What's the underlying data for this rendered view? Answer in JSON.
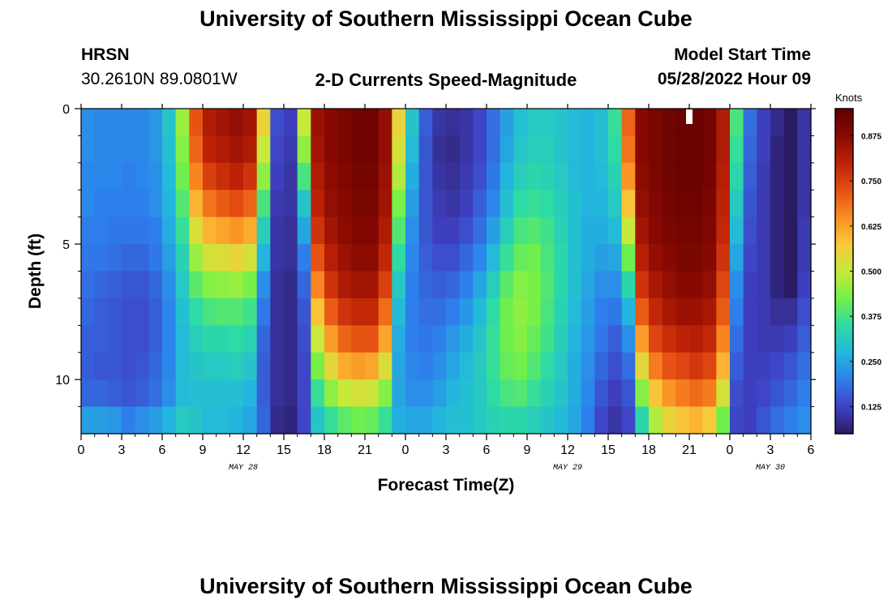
{
  "header": {
    "title": "University of Southern Mississippi Ocean Cube",
    "station_id": "HRSN",
    "station_coords": "30.2610N  89.0801W",
    "plot_title": "2-D Currents Speed-Magnitude",
    "model_start_label": "Model Start Time",
    "model_start_value": "05/28/2022 Hour 09"
  },
  "footer": {
    "title": "University of Southern Mississippi Ocean Cube"
  },
  "chart_data": {
    "type": "heatmap",
    "title": "2-D Currents Speed-Magnitude",
    "xlabel": "Forecast Time(Z)",
    "ylabel": "Depth (ft)",
    "x_unit": "hours since 2022-05-28 00Z",
    "xlim": [
      0,
      54
    ],
    "ylim": [
      0,
      12
    ],
    "y_inverted": true,
    "x_ticks": [
      {
        "h": 0,
        "label": "0"
      },
      {
        "h": 3,
        "label": "3"
      },
      {
        "h": 6,
        "label": "6"
      },
      {
        "h": 9,
        "label": "9"
      },
      {
        "h": 12,
        "label": "12"
      },
      {
        "h": 15,
        "label": "15"
      },
      {
        "h": 18,
        "label": "18"
      },
      {
        "h": 21,
        "label": "21"
      },
      {
        "h": 24,
        "label": "0"
      },
      {
        "h": 27,
        "label": "3"
      },
      {
        "h": 30,
        "label": "6"
      },
      {
        "h": 33,
        "label": "9"
      },
      {
        "h": 36,
        "label": "12"
      },
      {
        "h": 39,
        "label": "15"
      },
      {
        "h": 42,
        "label": "18"
      },
      {
        "h": 45,
        "label": "21"
      },
      {
        "h": 48,
        "label": "0"
      },
      {
        "h": 51,
        "label": "3"
      },
      {
        "h": 54,
        "label": "6"
      }
    ],
    "date_labels": [
      {
        "h": 12,
        "label": "MAY 28"
      },
      {
        "h": 36,
        "label": "MAY 29"
      },
      {
        "h": 51,
        "label": "MAY 30"
      }
    ],
    "y_ticks": [
      {
        "depth": 0,
        "label": "0"
      },
      {
        "depth": 5,
        "label": "5"
      },
      {
        "depth": 10,
        "label": "10"
      }
    ],
    "time_markers": [
      {
        "h": 45,
        "note": "white marker at top of plot"
      }
    ],
    "colorbar": {
      "label": "Knots",
      "range": [
        0.05,
        0.95
      ],
      "ticks": [
        {
          "value": 0.125,
          "label": "0.125"
        },
        {
          "value": 0.25,
          "label": "0.250"
        },
        {
          "value": 0.375,
          "label": "0.375"
        },
        {
          "value": 0.5,
          "label": "0.500"
        },
        {
          "value": 0.625,
          "label": "0.625"
        },
        {
          "value": 0.75,
          "label": "0.750"
        },
        {
          "value": 0.875,
          "label": "0.875"
        }
      ],
      "colors": [
        "#2b1b63",
        "#3f42c4",
        "#2e7fec",
        "#22b9dc",
        "#2ddba4",
        "#74f048",
        "#c6e93a",
        "#f9c83a",
        "#fb8d22",
        "#e54f12",
        "#bd2207",
        "#8a0a02",
        "#5e0000"
      ]
    },
    "grid_bins": {
      "time_step_hours": 1,
      "depth_step_ft": 1,
      "depths_ft": [
        0.5,
        1.5,
        2.5,
        3.5,
        4.5,
        5.5,
        6.5,
        7.5,
        8.5,
        9.5,
        10.5,
        11.5
      ]
    },
    "speed_profiles_knots": [
      {
        "h0": 0,
        "h1": 1,
        "values": [
          0.22,
          0.22,
          0.21,
          0.21,
          0.2,
          0.19,
          0.18,
          0.17,
          0.16,
          0.16,
          0.17,
          0.24
        ]
      },
      {
        "h0": 1,
        "h1": 2,
        "values": [
          0.21,
          0.21,
          0.21,
          0.2,
          0.2,
          0.19,
          0.17,
          0.16,
          0.16,
          0.15,
          0.17,
          0.24
        ]
      },
      {
        "h0": 2,
        "h1": 3,
        "values": [
          0.21,
          0.21,
          0.21,
          0.2,
          0.19,
          0.18,
          0.16,
          0.15,
          0.15,
          0.15,
          0.16,
          0.23
        ]
      },
      {
        "h0": 3,
        "h1": 4,
        "values": [
          0.21,
          0.21,
          0.2,
          0.2,
          0.19,
          0.17,
          0.15,
          0.14,
          0.14,
          0.14,
          0.15,
          0.2
        ]
      },
      {
        "h0": 4,
        "h1": 5,
        "values": [
          0.21,
          0.21,
          0.21,
          0.2,
          0.19,
          0.17,
          0.15,
          0.14,
          0.14,
          0.15,
          0.16,
          0.22
        ]
      },
      {
        "h0": 5,
        "h1": 6,
        "values": [
          0.23,
          0.23,
          0.22,
          0.22,
          0.2,
          0.19,
          0.17,
          0.16,
          0.16,
          0.17,
          0.18,
          0.24
        ]
      },
      {
        "h0": 6,
        "h1": 7,
        "values": [
          0.3,
          0.29,
          0.28,
          0.27,
          0.26,
          0.24,
          0.22,
          0.21,
          0.21,
          0.21,
          0.22,
          0.27
        ]
      },
      {
        "h0": 7,
        "h1": 8,
        "values": [
          0.46,
          0.44,
          0.42,
          0.39,
          0.36,
          0.33,
          0.31,
          0.29,
          0.28,
          0.28,
          0.28,
          0.31
        ]
      },
      {
        "h0": 8,
        "h1": 9,
        "values": [
          0.72,
          0.7,
          0.66,
          0.6,
          0.53,
          0.46,
          0.4,
          0.35,
          0.32,
          0.3,
          0.29,
          0.3
        ]
      },
      {
        "h0": 9,
        "h1": 10,
        "values": [
          0.82,
          0.8,
          0.75,
          0.68,
          0.6,
          0.52,
          0.44,
          0.38,
          0.34,
          0.31,
          0.29,
          0.28
        ]
      },
      {
        "h0": 10,
        "h1": 11,
        "values": [
          0.84,
          0.82,
          0.78,
          0.71,
          0.62,
          0.53,
          0.45,
          0.39,
          0.34,
          0.31,
          0.29,
          0.28
        ]
      },
      {
        "h0": 11,
        "h1": 12,
        "values": [
          0.86,
          0.84,
          0.8,
          0.73,
          0.64,
          0.55,
          0.46,
          0.39,
          0.35,
          0.32,
          0.29,
          0.27
        ]
      },
      {
        "h0": 12,
        "h1": 13,
        "values": [
          0.84,
          0.82,
          0.77,
          0.7,
          0.61,
          0.52,
          0.43,
          0.37,
          0.33,
          0.3,
          0.27,
          0.25
        ]
      },
      {
        "h0": 13,
        "h1": 14,
        "values": [
          0.55,
          0.5,
          0.45,
          0.38,
          0.32,
          0.27,
          0.22,
          0.19,
          0.17,
          0.16,
          0.16,
          0.17
        ]
      },
      {
        "h0": 14,
        "h1": 15,
        "values": [
          0.14,
          0.13,
          0.12,
          0.11,
          0.1,
          0.1,
          0.09,
          0.09,
          0.09,
          0.09,
          0.09,
          0.08
        ]
      },
      {
        "h0": 15,
        "h1": 16,
        "values": [
          0.12,
          0.11,
          0.1,
          0.1,
          0.09,
          0.09,
          0.08,
          0.08,
          0.08,
          0.08,
          0.08,
          0.07
        ]
      },
      {
        "h0": 16,
        "h1": 17,
        "values": [
          0.5,
          0.45,
          0.38,
          0.3,
          0.25,
          0.2,
          0.17,
          0.15,
          0.14,
          0.13,
          0.13,
          0.13
        ]
      },
      {
        "h0": 17,
        "h1": 18,
        "values": [
          0.85,
          0.84,
          0.82,
          0.8,
          0.77,
          0.72,
          0.66,
          0.58,
          0.5,
          0.43,
          0.36,
          0.3
        ]
      },
      {
        "h0": 18,
        "h1": 19,
        "values": [
          0.88,
          0.88,
          0.87,
          0.86,
          0.84,
          0.81,
          0.77,
          0.71,
          0.63,
          0.54,
          0.45,
          0.36
        ]
      },
      {
        "h0": 19,
        "h1": 20,
        "values": [
          0.9,
          0.9,
          0.89,
          0.88,
          0.87,
          0.85,
          0.82,
          0.77,
          0.7,
          0.61,
          0.5,
          0.4
        ]
      },
      {
        "h0": 20,
        "h1": 21,
        "values": [
          0.92,
          0.92,
          0.91,
          0.9,
          0.89,
          0.87,
          0.84,
          0.79,
          0.72,
          0.63,
          0.52,
          0.42
        ]
      },
      {
        "h0": 21,
        "h1": 22,
        "values": [
          0.92,
          0.92,
          0.91,
          0.9,
          0.89,
          0.87,
          0.84,
          0.79,
          0.72,
          0.62,
          0.51,
          0.41
        ]
      },
      {
        "h0": 22,
        "h1": 23,
        "values": [
          0.86,
          0.86,
          0.85,
          0.84,
          0.82,
          0.79,
          0.75,
          0.69,
          0.62,
          0.53,
          0.44,
          0.36
        ]
      },
      {
        "h0": 23,
        "h1": 24,
        "values": [
          0.55,
          0.52,
          0.48,
          0.43,
          0.39,
          0.35,
          0.31,
          0.28,
          0.26,
          0.25,
          0.25,
          0.26
        ]
      },
      {
        "h0": 24,
        "h1": 25,
        "values": [
          0.3,
          0.28,
          0.26,
          0.24,
          0.22,
          0.21,
          0.2,
          0.2,
          0.2,
          0.21,
          0.22,
          0.25
        ]
      },
      {
        "h0": 25,
        "h1": 26,
        "values": [
          0.16,
          0.15,
          0.15,
          0.15,
          0.15,
          0.16,
          0.17,
          0.18,
          0.19,
          0.2,
          0.22,
          0.25
        ]
      },
      {
        "h0": 26,
        "h1": 27,
        "values": [
          0.1,
          0.09,
          0.1,
          0.11,
          0.12,
          0.14,
          0.16,
          0.18,
          0.2,
          0.22,
          0.24,
          0.27
        ]
      },
      {
        "h0": 27,
        "h1": 28,
        "values": [
          0.09,
          0.08,
          0.09,
          0.1,
          0.12,
          0.14,
          0.17,
          0.2,
          0.23,
          0.25,
          0.27,
          0.29
        ]
      },
      {
        "h0": 28,
        "h1": 29,
        "values": [
          0.1,
          0.1,
          0.11,
          0.12,
          0.14,
          0.17,
          0.2,
          0.23,
          0.26,
          0.28,
          0.29,
          0.29
        ]
      },
      {
        "h0": 29,
        "h1": 30,
        "values": [
          0.13,
          0.13,
          0.14,
          0.16,
          0.18,
          0.21,
          0.25,
          0.28,
          0.3,
          0.31,
          0.31,
          0.31
        ]
      },
      {
        "h0": 30,
        "h1": 31,
        "values": [
          0.18,
          0.18,
          0.19,
          0.21,
          0.24,
          0.28,
          0.32,
          0.35,
          0.36,
          0.36,
          0.35,
          0.33
        ]
      },
      {
        "h0": 31,
        "h1": 32,
        "values": [
          0.24,
          0.25,
          0.27,
          0.29,
          0.32,
          0.36,
          0.4,
          0.42,
          0.42,
          0.41,
          0.38,
          0.34
        ]
      },
      {
        "h0": 32,
        "h1": 33,
        "values": [
          0.29,
          0.3,
          0.32,
          0.35,
          0.38,
          0.41,
          0.44,
          0.45,
          0.44,
          0.42,
          0.39,
          0.34
        ]
      },
      {
        "h0": 33,
        "h1": 34,
        "values": [
          0.31,
          0.32,
          0.34,
          0.36,
          0.39,
          0.42,
          0.43,
          0.43,
          0.41,
          0.39,
          0.36,
          0.32
        ]
      },
      {
        "h0": 34,
        "h1": 35,
        "values": [
          0.31,
          0.32,
          0.33,
          0.35,
          0.37,
          0.38,
          0.39,
          0.38,
          0.37,
          0.35,
          0.33,
          0.3
        ]
      },
      {
        "h0": 35,
        "h1": 36,
        "values": [
          0.3,
          0.3,
          0.31,
          0.32,
          0.33,
          0.34,
          0.34,
          0.33,
          0.32,
          0.31,
          0.3,
          0.28
        ]
      },
      {
        "h0": 36,
        "h1": 37,
        "values": [
          0.28,
          0.28,
          0.28,
          0.29,
          0.29,
          0.29,
          0.29,
          0.28,
          0.27,
          0.26,
          0.26,
          0.25
        ]
      },
      {
        "h0": 37,
        "h1": 38,
        "values": [
          0.27,
          0.27,
          0.27,
          0.27,
          0.26,
          0.26,
          0.25,
          0.24,
          0.23,
          0.22,
          0.21,
          0.2
        ]
      },
      {
        "h0": 38,
        "h1": 39,
        "values": [
          0.29,
          0.29,
          0.28,
          0.27,
          0.26,
          0.24,
          0.22,
          0.2,
          0.19,
          0.17,
          0.15,
          0.13
        ]
      },
      {
        "h0": 39,
        "h1": 40,
        "values": [
          0.36,
          0.35,
          0.33,
          0.31,
          0.28,
          0.25,
          0.22,
          0.19,
          0.16,
          0.14,
          0.12,
          0.1
        ]
      },
      {
        "h0": 40,
        "h1": 41,
        "values": [
          0.7,
          0.68,
          0.64,
          0.58,
          0.5,
          0.42,
          0.34,
          0.27,
          0.22,
          0.18,
          0.15,
          0.13
        ]
      },
      {
        "h0": 41,
        "h1": 42,
        "values": [
          0.88,
          0.88,
          0.87,
          0.86,
          0.84,
          0.81,
          0.77,
          0.71,
          0.63,
          0.54,
          0.44,
          0.34
        ]
      },
      {
        "h0": 42,
        "h1": 43,
        "values": [
          0.9,
          0.9,
          0.9,
          0.89,
          0.88,
          0.86,
          0.83,
          0.79,
          0.74,
          0.67,
          0.58,
          0.48
        ]
      },
      {
        "h0": 43,
        "h1": 44,
        "values": [
          0.92,
          0.92,
          0.92,
          0.91,
          0.9,
          0.88,
          0.86,
          0.83,
          0.78,
          0.72,
          0.64,
          0.55
        ]
      },
      {
        "h0": 44,
        "h1": 45,
        "values": [
          0.93,
          0.93,
          0.93,
          0.92,
          0.91,
          0.9,
          0.88,
          0.85,
          0.8,
          0.74,
          0.67,
          0.58
        ]
      },
      {
        "h0": 45,
        "h1": 46,
        "values": [
          0.93,
          0.93,
          0.93,
          0.92,
          0.91,
          0.9,
          0.88,
          0.85,
          0.81,
          0.76,
          0.69,
          0.6
        ]
      },
      {
        "h0": 46,
        "h1": 47,
        "values": [
          0.91,
          0.91,
          0.91,
          0.9,
          0.89,
          0.88,
          0.86,
          0.83,
          0.79,
          0.74,
          0.67,
          0.57
        ]
      },
      {
        "h0": 47,
        "h1": 48,
        "values": [
          0.82,
          0.82,
          0.81,
          0.8,
          0.79,
          0.77,
          0.74,
          0.71,
          0.66,
          0.6,
          0.52,
          0.42
        ]
      },
      {
        "h0": 48,
        "h1": 49,
        "values": [
          0.38,
          0.36,
          0.34,
          0.31,
          0.28,
          0.25,
          0.22,
          0.2,
          0.18,
          0.16,
          0.14,
          0.13
        ]
      },
      {
        "h0": 49,
        "h1": 50,
        "values": [
          0.18,
          0.17,
          0.16,
          0.15,
          0.14,
          0.13,
          0.12,
          0.12,
          0.12,
          0.12,
          0.12,
          0.12
        ]
      },
      {
        "h0": 50,
        "h1": 51,
        "values": [
          0.12,
          0.12,
          0.11,
          0.11,
          0.11,
          0.11,
          0.11,
          0.11,
          0.11,
          0.12,
          0.13,
          0.15
        ]
      },
      {
        "h0": 51,
        "h1": 52,
        "values": [
          0.08,
          0.07,
          0.07,
          0.07,
          0.07,
          0.07,
          0.07,
          0.09,
          0.11,
          0.13,
          0.15,
          0.18
        ]
      },
      {
        "h0": 52,
        "h1": 53,
        "values": [
          0.05,
          0.05,
          0.05,
          0.05,
          0.05,
          0.05,
          0.05,
          0.09,
          0.12,
          0.15,
          0.17,
          0.2
        ]
      },
      {
        "h0": 53,
        "h1": 54,
        "values": [
          0.1,
          0.1,
          0.1,
          0.1,
          0.11,
          0.11,
          0.12,
          0.14,
          0.16,
          0.18,
          0.2,
          0.22
        ]
      }
    ]
  }
}
